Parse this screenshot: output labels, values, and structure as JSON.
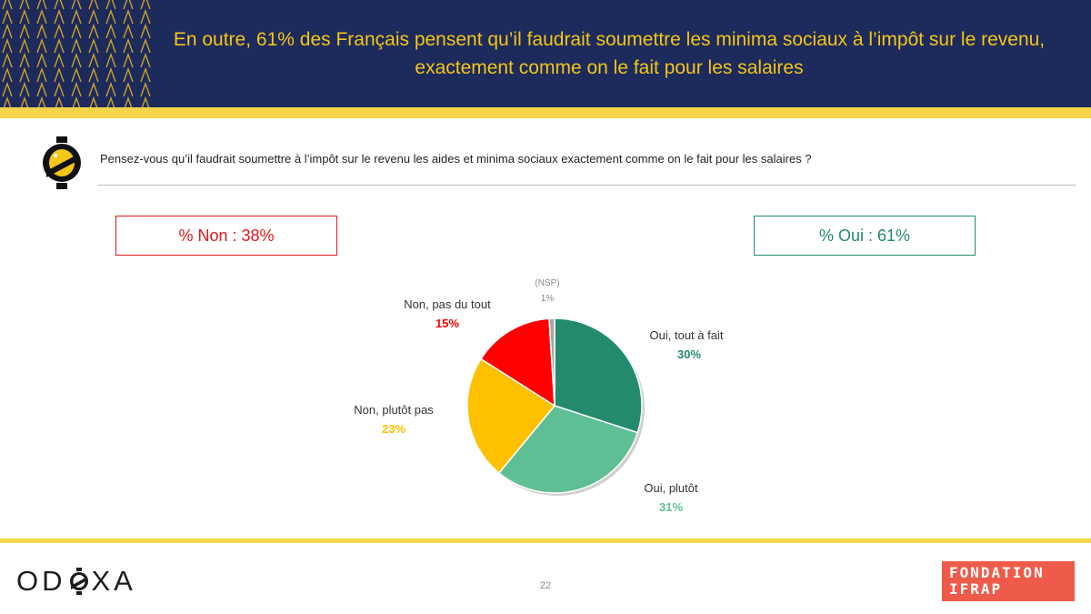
{
  "header": {
    "title": "En outre, 61% des Français pensent qu’il faudrait soumettre les minima sociaux à l’impôt sur le revenu, exactement comme on le fait pour les salaires"
  },
  "question": {
    "text": "Pensez-vous qu’il faudrait soumettre à l’impôt sur le revenu les aides et minima sociaux exactement comme on le fait pour les salaires ?"
  },
  "summary": {
    "non": "% Non : 38%",
    "oui": "% Oui : 61%"
  },
  "colors": {
    "header_bg": "#1d2a5c",
    "accent_yellow": "#f7d54a",
    "non_red": "#e0181c",
    "oui_green": "#238a6e"
  },
  "chart_data": {
    "type": "pie",
    "slices": [
      {
        "label": "Oui, tout à fait",
        "value": 30,
        "value_label": "30%",
        "color": "#238a6e"
      },
      {
        "label": "Oui, plutôt",
        "value": 31,
        "value_label": "31%",
        "color": "#5fbf94"
      },
      {
        "label": "Non, plutôt pas",
        "value": 23,
        "value_label": "23%",
        "color": "#ffc000"
      },
      {
        "label": "Non, pas du tout",
        "value": 15,
        "value_label": "15%",
        "color": "#ff0000"
      },
      {
        "label": "(NSP)",
        "value": 1,
        "value_label": "1%",
        "color": "#a6a6a6"
      }
    ],
    "start": "top",
    "direction": "clockwise"
  },
  "footer": {
    "odoxa_logo": [
      "OD",
      "XA"
    ],
    "page_number": "22",
    "fondation_line1": "FONDATION",
    "fondation_line2": "IFRAP"
  }
}
